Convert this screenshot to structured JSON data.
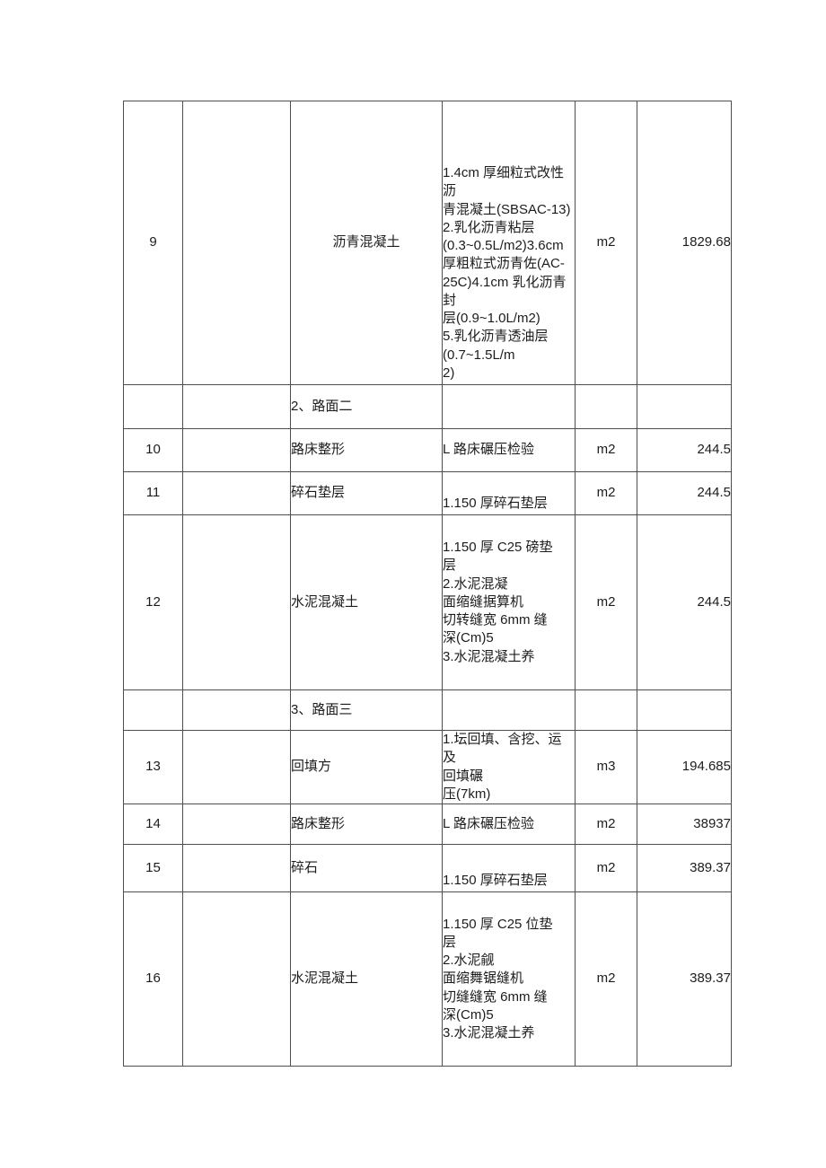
{
  "colors": {
    "background": "#ffffff",
    "border": "#4e4e4e",
    "text": "#1c1c1c"
  },
  "table": {
    "rows": [
      {
        "seq": "9",
        "name": "沥青混凝土",
        "desc": "1.4cm 厚细粒式改性沥\n青混凝土(SBSAC-13)\n2.乳化沥青粘层\n(0.3~0.5L/m2)3.6cm\n厚粗粒式沥青佐(AC-\n25C)4.1cm 乳化沥青封\n层(0.9~1.0L/m2)\n5.乳化沥青透油层\n(0.7~1.5L/m\n2)",
        "unit": "m2",
        "qty": "1829.68"
      },
      {
        "label": "2、路面二"
      },
      {
        "seq": "10",
        "name": "路床整形",
        "desc": "L 路床碾压检验",
        "unit": "m2",
        "qty": "244.5"
      },
      {
        "seq": "11",
        "name": "碎石垫层",
        "desc": "1.150 厚碎石垫层",
        "unit": "m2",
        "qty": "244.5"
      },
      {
        "seq": "12",
        "name": "水泥混凝土",
        "desc": "1.150 厚 C25 磅垫\n层\n2.水泥混凝\n面缩缝据算机\n切转缝宽 6mm 缝\n深(Cm)5\n3.水泥混凝土养",
        "unit": "m2",
        "qty": "244.5"
      },
      {
        "label": "3、路面三"
      },
      {
        "seq": "13",
        "name": "回填方",
        "desc": "1.坛回填、含挖、运及\n回填碾\n压(7km)",
        "unit": "m3",
        "qty": "194.685"
      },
      {
        "seq": "14",
        "name": "路床整形",
        "desc": "L 路床碾压检验",
        "unit": "m2",
        "qty": "38937"
      },
      {
        "seq": "15",
        "name": "碎石",
        "desc": "1.150 厚碎石垫层",
        "unit": "m2",
        "qty": "389.37"
      },
      {
        "seq": "16",
        "name": "水泥混凝土",
        "desc": "1.150 厚 C25 位垫\n层\n2.水泥觎\n面缩舞锯缝机\n切缝缝宽 6mm 缝\n深(Cm)5\n3.水泥混凝土养",
        "unit": "m2",
        "qty": "389.37"
      }
    ]
  }
}
